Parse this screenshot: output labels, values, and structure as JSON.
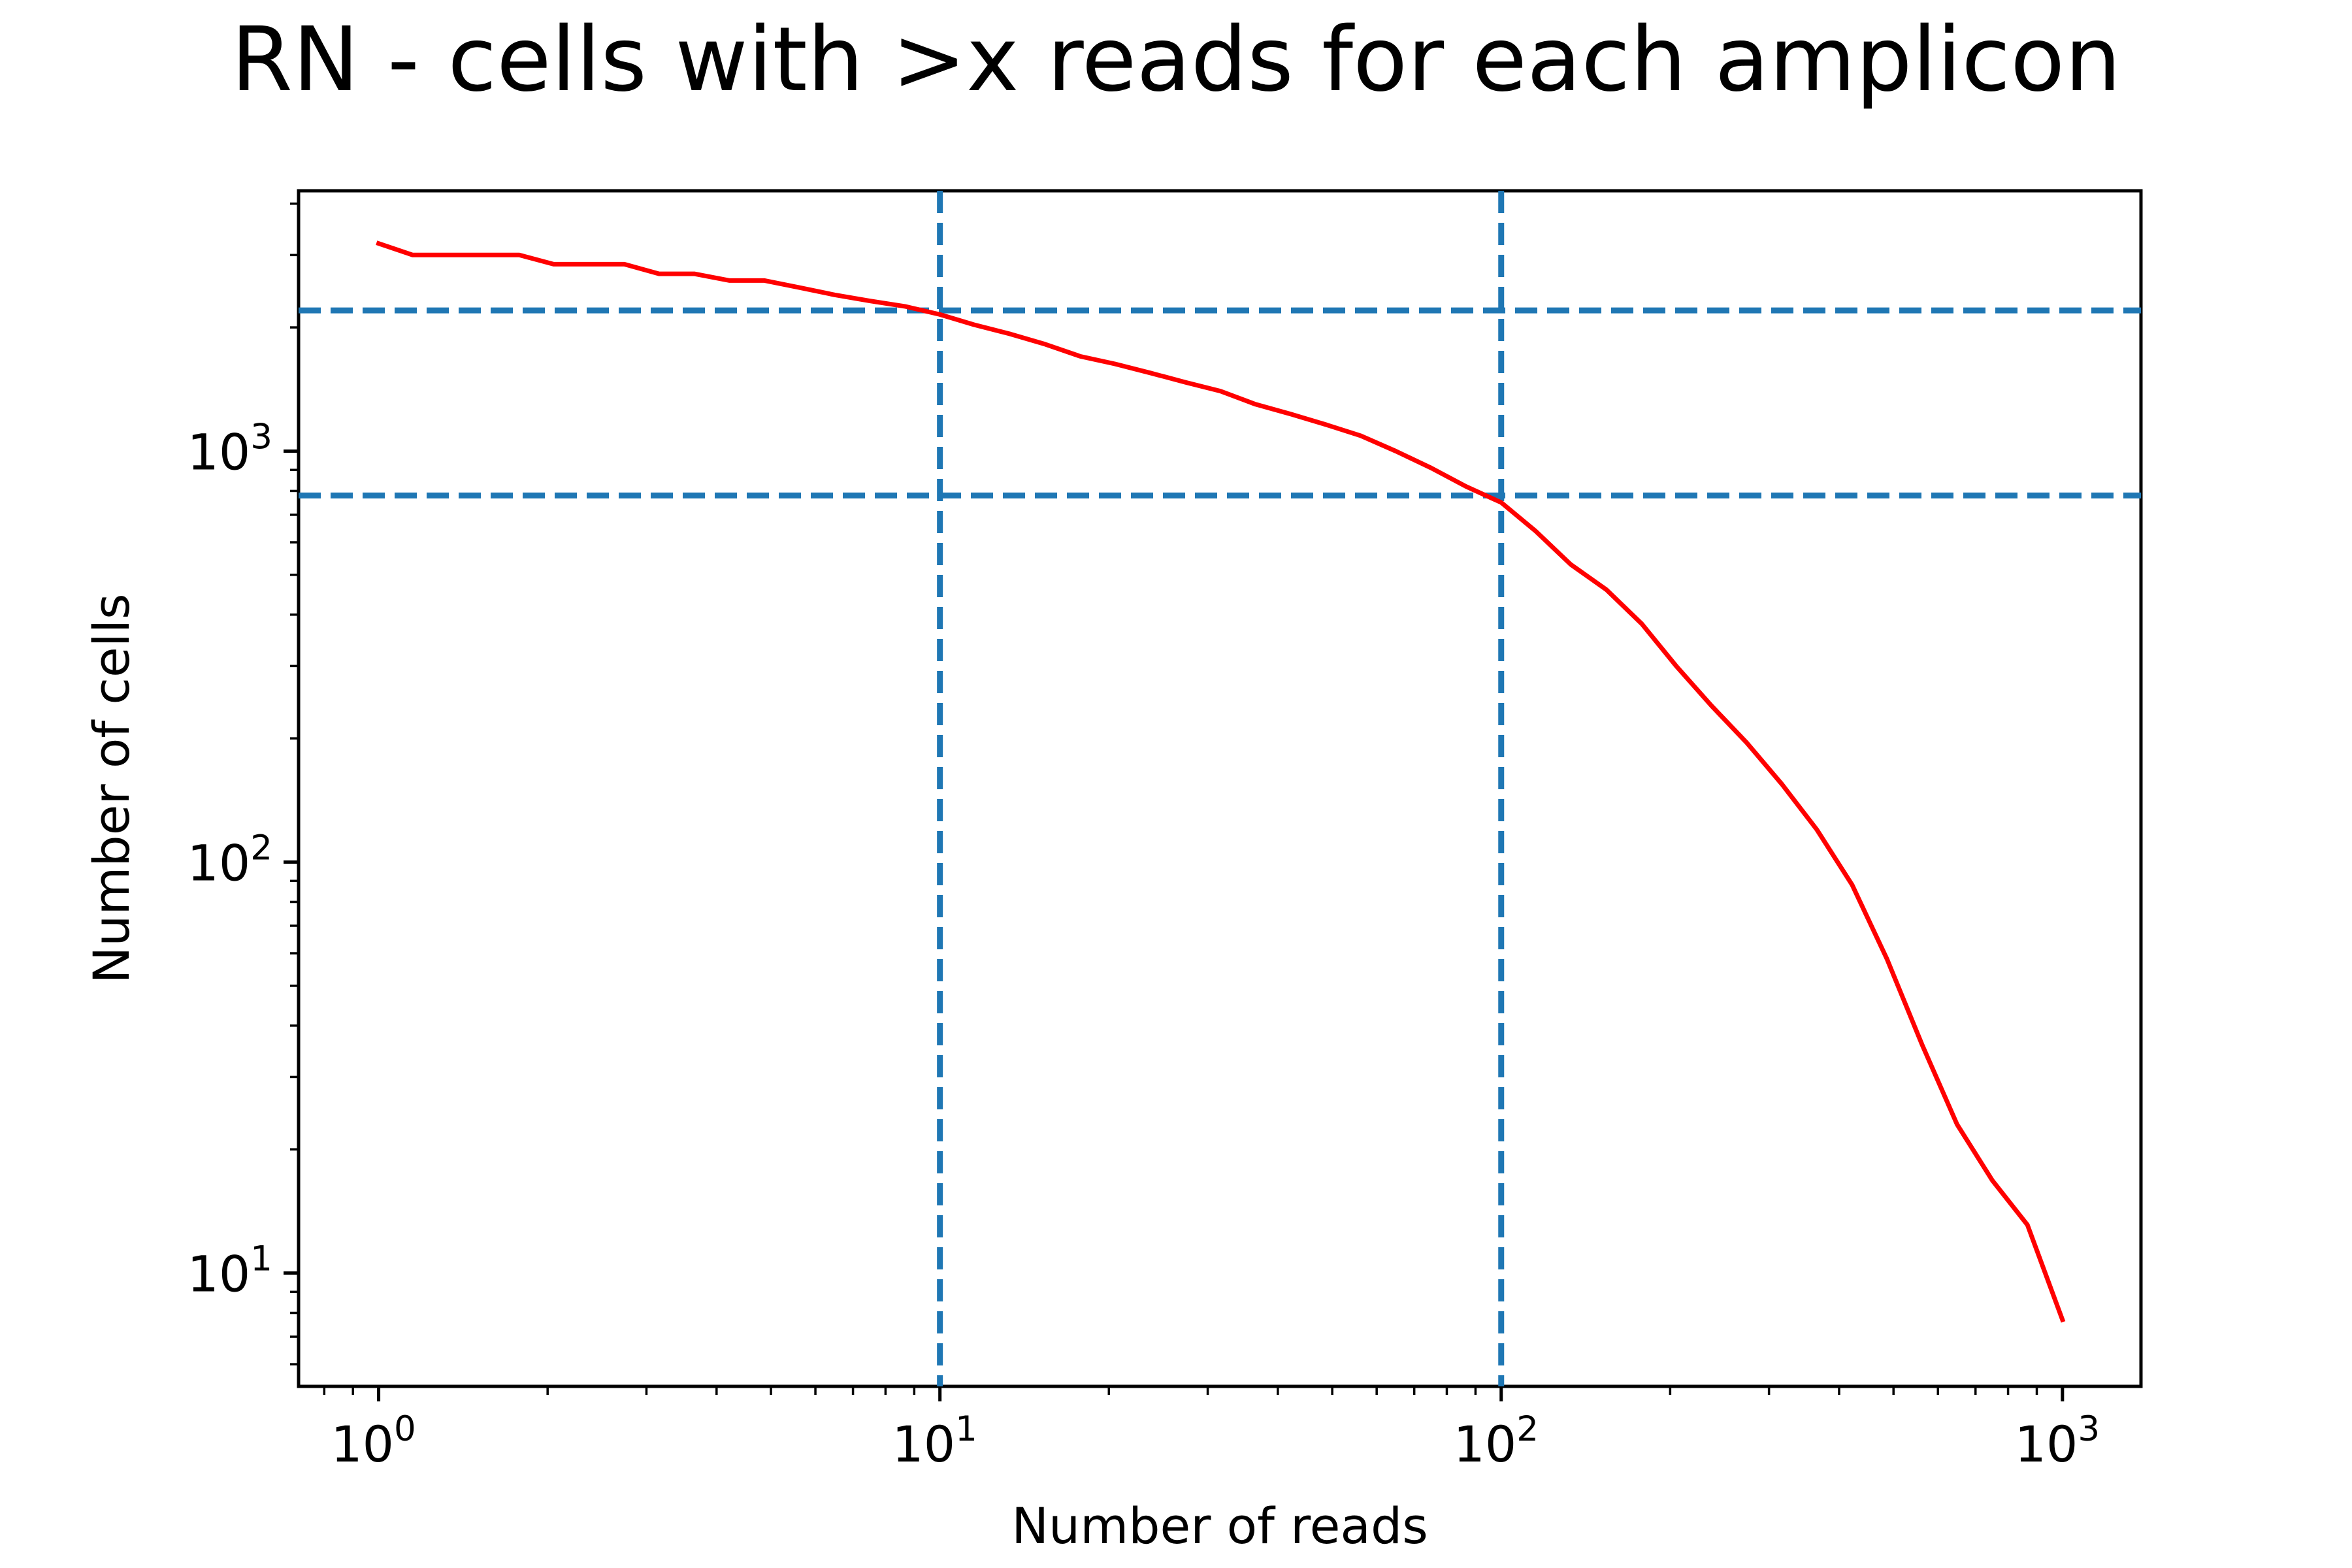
{
  "chart_data": {
    "type": "line",
    "title": "RN - cells with >x reads for each amplicon",
    "xlabel": "Number of reads",
    "ylabel": "Number of cells",
    "xscale": "log",
    "yscale": "log",
    "xlim": [
      0.72,
      1380
    ],
    "ylim": [
      5.3,
      4300
    ],
    "grid": false,
    "x_ticks": [
      {
        "value": 1,
        "base": "10",
        "exp": "0"
      },
      {
        "value": 10,
        "base": "10",
        "exp": "1"
      },
      {
        "value": 100,
        "base": "10",
        "exp": "2"
      },
      {
        "value": 1000,
        "base": "10",
        "exp": "3"
      }
    ],
    "y_ticks": [
      {
        "value": 10,
        "base": "10",
        "exp": "1"
      },
      {
        "value": 100,
        "base": "10",
        "exp": "2"
      },
      {
        "value": 1000,
        "base": "10",
        "exp": "3"
      }
    ],
    "series": [
      {
        "color": "#ff0000",
        "x": [
          1,
          1.15,
          1.33,
          1.54,
          1.78,
          2.05,
          2.37,
          2.74,
          3.16,
          3.65,
          4.22,
          4.87,
          5.62,
          6.49,
          7.5,
          8.66,
          10,
          11.5,
          13.3,
          15.4,
          17.8,
          20.5,
          23.7,
          27.4,
          31.6,
          36.5,
          42.2,
          48.7,
          56.2,
          64.9,
          75,
          86.6,
          100,
          115,
          133,
          154,
          178,
          205,
          237,
          274,
          316,
          365,
          422,
          487,
          562,
          649,
          750,
          866,
          1000
        ],
        "y": [
          3200,
          3000,
          3000,
          3000,
          3000,
          2850,
          2850,
          2850,
          2700,
          2700,
          2600,
          2600,
          2500,
          2400,
          2320,
          2250,
          2150,
          2030,
          1930,
          1820,
          1700,
          1630,
          1550,
          1470,
          1400,
          1300,
          1230,
          1160,
          1090,
          1000,
          910,
          820,
          750,
          640,
          530,
          460,
          380,
          300,
          240,
          195,
          155,
          120,
          88,
          58,
          36,
          23,
          16.8,
          13.1,
          7.7
        ]
      }
    ],
    "reference_lines": [
      {
        "orientation": "vertical",
        "value": 10,
        "color": "#1f77b4",
        "style": "dashed"
      },
      {
        "orientation": "vertical",
        "value": 100,
        "color": "#1f77b4",
        "style": "dashed"
      },
      {
        "orientation": "horizontal",
        "value": 2200,
        "color": "#1f77b4",
        "style": "dashed"
      },
      {
        "orientation": "horizontal",
        "value": 780,
        "color": "#1f77b4",
        "style": "dashed"
      }
    ]
  }
}
